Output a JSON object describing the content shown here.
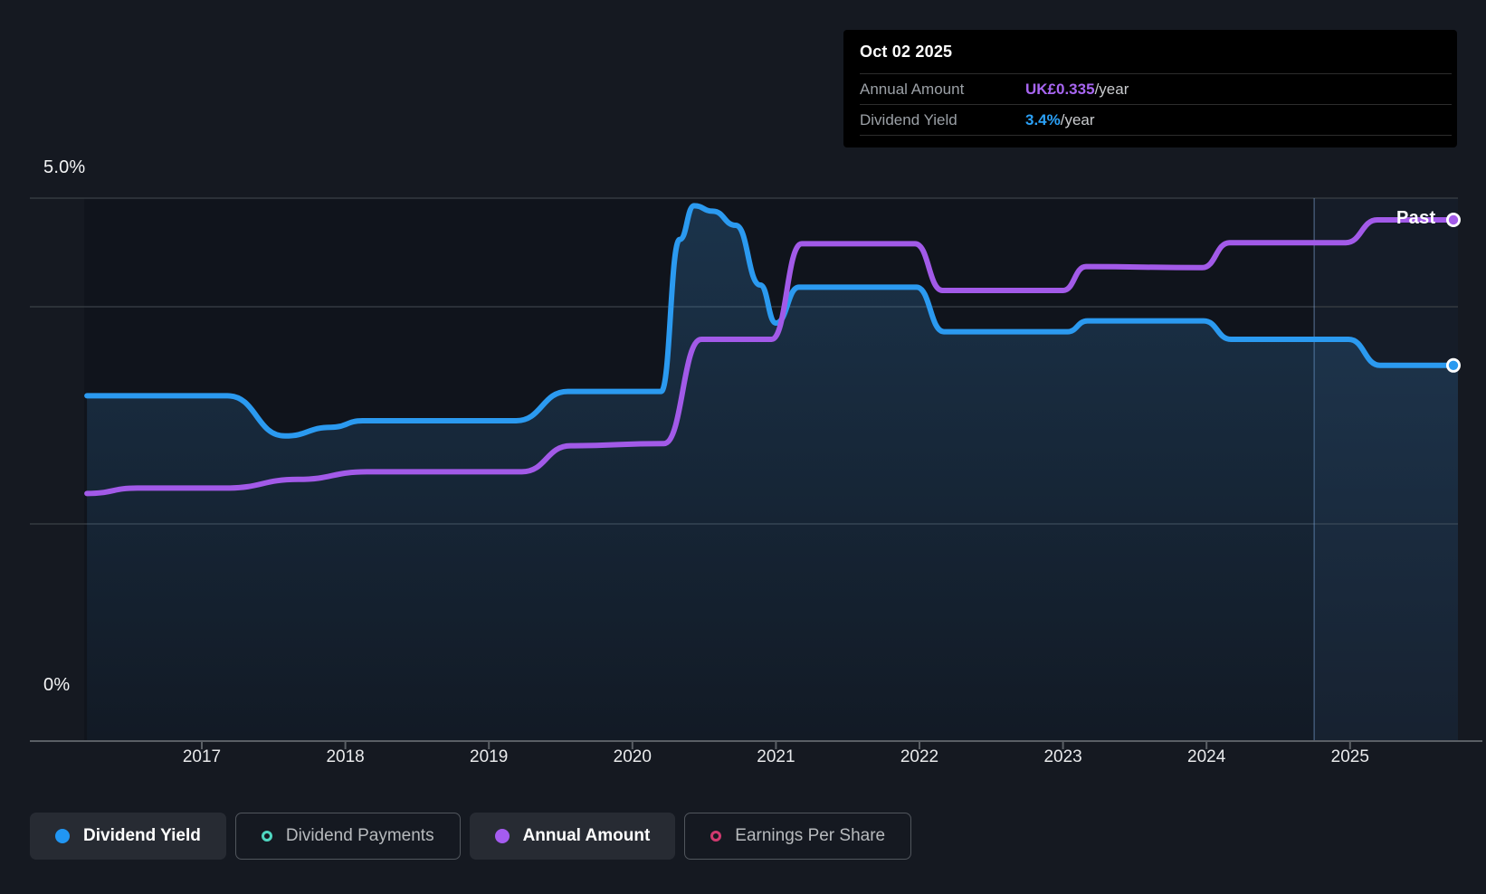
{
  "tooltip": {
    "date": "Oct 02 2025",
    "rows": [
      {
        "label": "Annual Amount",
        "value": "UK£0.335",
        "value_color": "#a866f2",
        "suffix": "/year"
      },
      {
        "label": "Dividend Yield",
        "value": "3.4%",
        "value_color": "#2ba1f7",
        "suffix": "/year"
      }
    ]
  },
  "past_label": "Past",
  "y_axis": {
    "top_label": "5.0%",
    "bottom_label": "0%"
  },
  "x_axis": {
    "years": [
      "2017",
      "2018",
      "2019",
      "2020",
      "2021",
      "2022",
      "2023",
      "2024",
      "2025"
    ]
  },
  "legend": [
    {
      "label": "Dividend Yield",
      "active": true,
      "icon": "dot",
      "color": "#2196f3"
    },
    {
      "label": "Dividend Payments",
      "active": false,
      "icon": "ring",
      "color": "#4fd6c0"
    },
    {
      "label": "Annual Amount",
      "active": true,
      "icon": "dot",
      "color": "#a55cf0"
    },
    {
      "label": "Earnings Per Share",
      "active": false,
      "icon": "ring",
      "color": "#d0396f"
    }
  ],
  "chart_data": {
    "type": "line",
    "title": "Dividend yield and annual amount over time",
    "x_range": [
      2016.2,
      2025.75
    ],
    "y_range": [
      0,
      5
    ],
    "y_unit": "percent (dividend yield axis)",
    "axis_labels": {
      "top": "5.0%",
      "bottom": "0%"
    },
    "gridlines_pct": [
      5,
      4,
      2,
      0
    ],
    "past_divider_year": 2024.75,
    "legend_position": "bottom",
    "series": [
      {
        "name": "Dividend Yield",
        "color": "#2b9af0",
        "fill": true,
        "end_value": "3.4%/year",
        "points": [
          [
            2016.2,
            3.18
          ],
          [
            2017.18,
            3.18
          ],
          [
            2017.58,
            2.81
          ],
          [
            2017.9,
            2.89
          ],
          [
            2018.12,
            2.95
          ],
          [
            2019.19,
            2.95
          ],
          [
            2019.55,
            3.22
          ],
          [
            2020.2,
            3.22
          ],
          [
            2020.33,
            4.62
          ],
          [
            2020.43,
            4.93
          ],
          [
            2020.56,
            4.88
          ],
          [
            2020.72,
            4.75
          ],
          [
            2020.89,
            4.2
          ],
          [
            2021.0,
            3.85
          ],
          [
            2021.16,
            4.18
          ],
          [
            2021.98,
            4.18
          ],
          [
            2022.17,
            3.77
          ],
          [
            2023.03,
            3.77
          ],
          [
            2023.17,
            3.87
          ],
          [
            2023.98,
            3.87
          ],
          [
            2024.17,
            3.7
          ],
          [
            2024.99,
            3.7
          ],
          [
            2025.21,
            3.46
          ],
          [
            2025.72,
            3.46
          ]
        ]
      },
      {
        "name": "Annual Amount",
        "color": "#a25ae8",
        "fill": false,
        "end_value": "UK£0.335/year",
        "points": [
          [
            2016.2,
            2.28
          ],
          [
            2016.55,
            2.33
          ],
          [
            2017.17,
            2.33
          ],
          [
            2017.67,
            2.41
          ],
          [
            2018.15,
            2.48
          ],
          [
            2019.23,
            2.48
          ],
          [
            2019.57,
            2.72
          ],
          [
            2020.22,
            2.74
          ],
          [
            2020.48,
            3.7
          ],
          [
            2020.97,
            3.7
          ],
          [
            2021.18,
            4.58
          ],
          [
            2021.97,
            4.58
          ],
          [
            2022.16,
            4.15
          ],
          [
            2023.0,
            4.15
          ],
          [
            2023.16,
            4.37
          ],
          [
            2023.97,
            4.36
          ],
          [
            2024.16,
            4.59
          ],
          [
            2024.97,
            4.59
          ],
          [
            2025.19,
            4.8
          ],
          [
            2025.72,
            4.8
          ]
        ]
      }
    ]
  },
  "colors": {
    "page_bg": "#151921",
    "plot_bg": "#10141c",
    "grid": "#343a41",
    "axis": "#5a5f65",
    "tick": "#5a5f65",
    "future_band": "rgba(100,145,200,0.07)",
    "divider": "rgba(125,160,210,0.45)",
    "fill_top": "rgba(56,135,200,0.27)",
    "fill_bottom": "rgba(56,135,200,0.05)",
    "marker_ring": "#ffffff"
  }
}
